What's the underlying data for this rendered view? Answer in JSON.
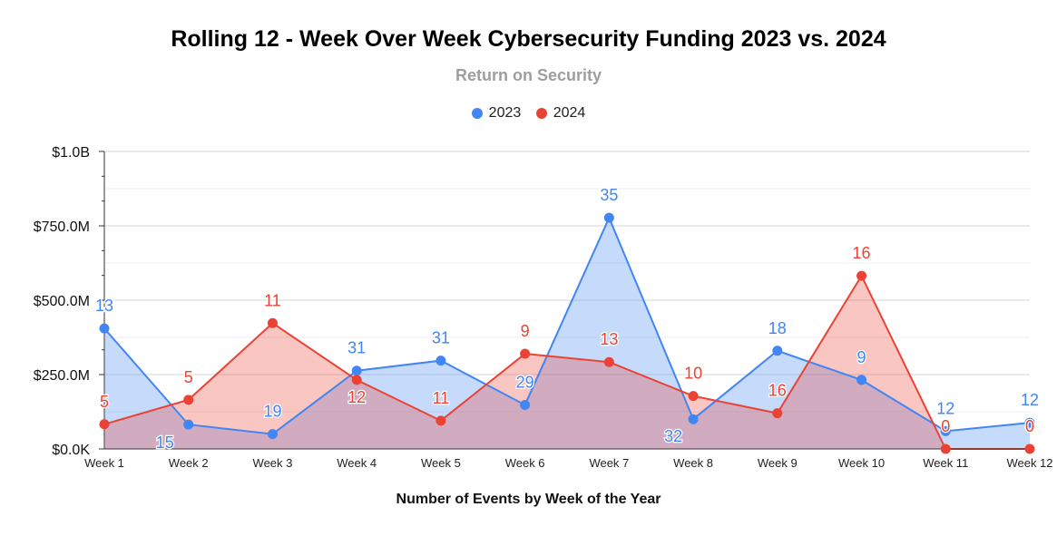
{
  "chart_data": {
    "type": "area",
    "title": "Rolling 12 - Week Over Week Cybersecurity Funding 2023 vs. 2024",
    "subtitle": "Return on Security",
    "xlabel": "Number of Events by Week of the Year",
    "ylabel": "",
    "categories": [
      "Week 1",
      "Week 2",
      "Week 3",
      "Week 4",
      "Week 5",
      "Week 6",
      "Week 7",
      "Week 8",
      "Week 9",
      "Week 10",
      "Week 11",
      "Week 12"
    ],
    "ylim": [
      0,
      1000000000
    ],
    "yticks": [
      {
        "value": 0,
        "label": "$0.0K"
      },
      {
        "value": 250000000,
        "label": "$250.0M"
      },
      {
        "value": 500000000,
        "label": "$500.0M"
      },
      {
        "value": 750000000,
        "label": "$750.0M"
      },
      {
        "value": 1000000000,
        "label": "$1.0B"
      }
    ],
    "grid": true,
    "legend_position": "top-center",
    "series": [
      {
        "name": "2023",
        "color": "#4285f4",
        "fill": "#c6d9f8",
        "values": [
          405000000,
          82000000,
          50000000,
          263000000,
          297000000,
          148000000,
          777000000,
          100000000,
          330000000,
          232000000,
          60000000,
          88000000
        ],
        "labels": [
          "13",
          "15",
          "19",
          "31",
          "31",
          "29",
          "35",
          "32",
          "18",
          "9",
          "12",
          "12"
        ]
      },
      {
        "name": "2024",
        "color": "#ea4335",
        "fill": "#f5b7b1",
        "values": [
          83000000,
          165000000,
          423000000,
          232000000,
          95000000,
          320000000,
          292000000,
          178000000,
          120000000,
          582000000,
          0,
          0
        ],
        "labels": [
          "5",
          "5",
          "11",
          "12",
          "11",
          "9",
          "13",
          "10",
          "16",
          "16",
          "0",
          "0"
        ]
      }
    ]
  }
}
